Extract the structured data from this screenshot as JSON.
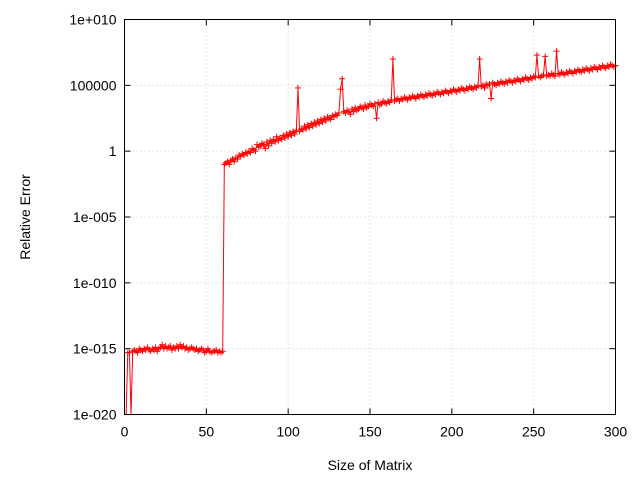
{
  "chart_data": {
    "type": "line",
    "title": "",
    "xlabel": "Size of Matrix",
    "ylabel": "Relative Error",
    "xlim": [
      0,
      300
    ],
    "ylim_log10": [
      -20,
      10
    ],
    "yscale": "log",
    "grid": true,
    "x_ticks": [
      0,
      50,
      100,
      150,
      200,
      250,
      300
    ],
    "x_tick_labels": [
      "0",
      "50",
      "100",
      "150",
      "200",
      "250",
      "300"
    ],
    "y_ticks_log10": [
      -20,
      -15,
      -10,
      -5,
      0,
      5,
      10
    ],
    "y_tick_labels": [
      "1e-020",
      "1e-015",
      "1e-010",
      "1e-005",
      "1",
      "100000",
      "1e+010"
    ],
    "series_color": "#ff0000",
    "marker": "plus",
    "series": [
      {
        "x_start": 1,
        "x_step": 1,
        "log10_values": [
          -21.0,
          -15.3,
          -15.3,
          -21.0,
          -15.2,
          -15.1,
          -15.2,
          -15.3,
          -15.0,
          -15.1,
          -15.2,
          -15.0,
          -15.1,
          -14.9,
          -15.1,
          -15.2,
          -15.0,
          -15.1,
          -14.9,
          -15.2,
          -15.0,
          -14.9,
          -14.7,
          -15.0,
          -14.8,
          -15.0,
          -14.9,
          -14.8,
          -15.1,
          -14.9,
          -15.0,
          -14.8,
          -15.0,
          -14.7,
          -14.9,
          -14.8,
          -15.0,
          -14.9,
          -15.1,
          -15.0,
          -14.9,
          -15.0,
          -15.1,
          -15.0,
          -15.2,
          -15.1,
          -15.0,
          -15.1,
          -15.3,
          -15.2,
          -15.0,
          -15.2,
          -15.3,
          -15.2,
          -15.2,
          -15.1,
          -15.3,
          -15.2,
          -15.3,
          -15.2,
          -1.0,
          -0.9,
          -0.8,
          -1.0,
          -0.7,
          -0.6,
          -0.8,
          -0.5,
          -0.6,
          -0.3,
          -0.4,
          -0.2,
          -0.3,
          -0.1,
          -0.2,
          0.0,
          -0.1,
          0.2,
          0.1,
          0.0,
          0.5,
          0.3,
          0.4,
          0.6,
          0.5,
          0.2,
          0.7,
          0.4,
          0.8,
          0.6,
          0.9,
          0.7,
          1.1,
          0.8,
          1.0,
          0.9,
          1.2,
          1.0,
          1.3,
          1.1,
          1.4,
          1.2,
          1.5,
          1.3,
          1.6,
          4.8,
          1.5,
          1.7,
          1.6,
          1.9,
          1.7,
          2.0,
          1.8,
          2.1,
          1.9,
          2.2,
          2.0,
          2.3,
          2.1,
          2.4,
          2.2,
          2.5,
          2.3,
          2.6,
          2.5,
          2.4,
          2.7,
          2.6,
          2.8,
          2.7,
          2.9,
          4.7,
          5.5,
          3.0,
          2.9,
          3.1,
          3.0,
          2.8,
          3.2,
          3.0,
          3.3,
          3.1,
          3.2,
          3.4,
          3.3,
          3.2,
          3.5,
          3.3,
          3.4,
          3.6,
          3.5,
          3.4,
          3.6,
          2.5,
          3.7,
          3.5,
          3.6,
          3.8,
          3.7,
          3.6,
          3.8,
          3.7,
          3.9,
          7.0,
          3.8,
          3.9,
          4.0,
          3.8,
          4.0,
          3.9,
          4.1,
          4.0,
          3.9,
          4.1,
          4.0,
          4.2,
          4.1,
          4.0,
          4.2,
          4.1,
          4.3,
          4.2,
          4.1,
          4.3,
          4.2,
          4.4,
          4.3,
          4.2,
          4.4,
          4.3,
          4.5,
          4.4,
          4.3,
          4.5,
          4.4,
          4.6,
          4.5,
          4.4,
          4.6,
          4.5,
          4.7,
          4.6,
          4.5,
          4.7,
          4.6,
          4.8,
          4.7,
          4.6,
          4.8,
          4.7,
          4.9,
          4.8,
          4.7,
          4.9,
          4.8,
          5.0,
          7.0,
          4.9,
          5.0,
          4.8,
          5.1,
          5.0,
          5.1,
          4.0,
          5.2,
          5.1,
          5.0,
          5.2,
          5.1,
          5.3,
          5.2,
          5.1,
          5.3,
          5.2,
          5.4,
          5.3,
          5.2,
          5.4,
          5.3,
          5.5,
          5.4,
          5.3,
          5.5,
          5.4,
          5.6,
          5.5,
          5.4,
          5.6,
          5.5,
          5.7,
          5.6,
          7.3,
          5.7,
          5.6,
          5.7,
          5.8,
          7.2,
          5.7,
          5.8,
          5.7,
          5.9,
          5.8,
          5.7,
          7.6,
          5.9,
          5.8,
          6.0,
          5.9,
          5.8,
          6.0,
          5.9,
          6.1,
          6.0,
          5.9,
          6.1,
          6.0,
          6.2,
          6.1,
          6.0,
          6.2,
          6.1,
          6.3,
          6.2,
          6.1,
          6.3,
          6.2,
          6.4,
          6.3,
          6.2,
          6.4,
          6.3,
          6.5,
          6.4,
          6.3,
          6.5,
          6.4,
          6.6,
          6.5,
          6.4,
          6.5
        ]
      }
    ]
  }
}
